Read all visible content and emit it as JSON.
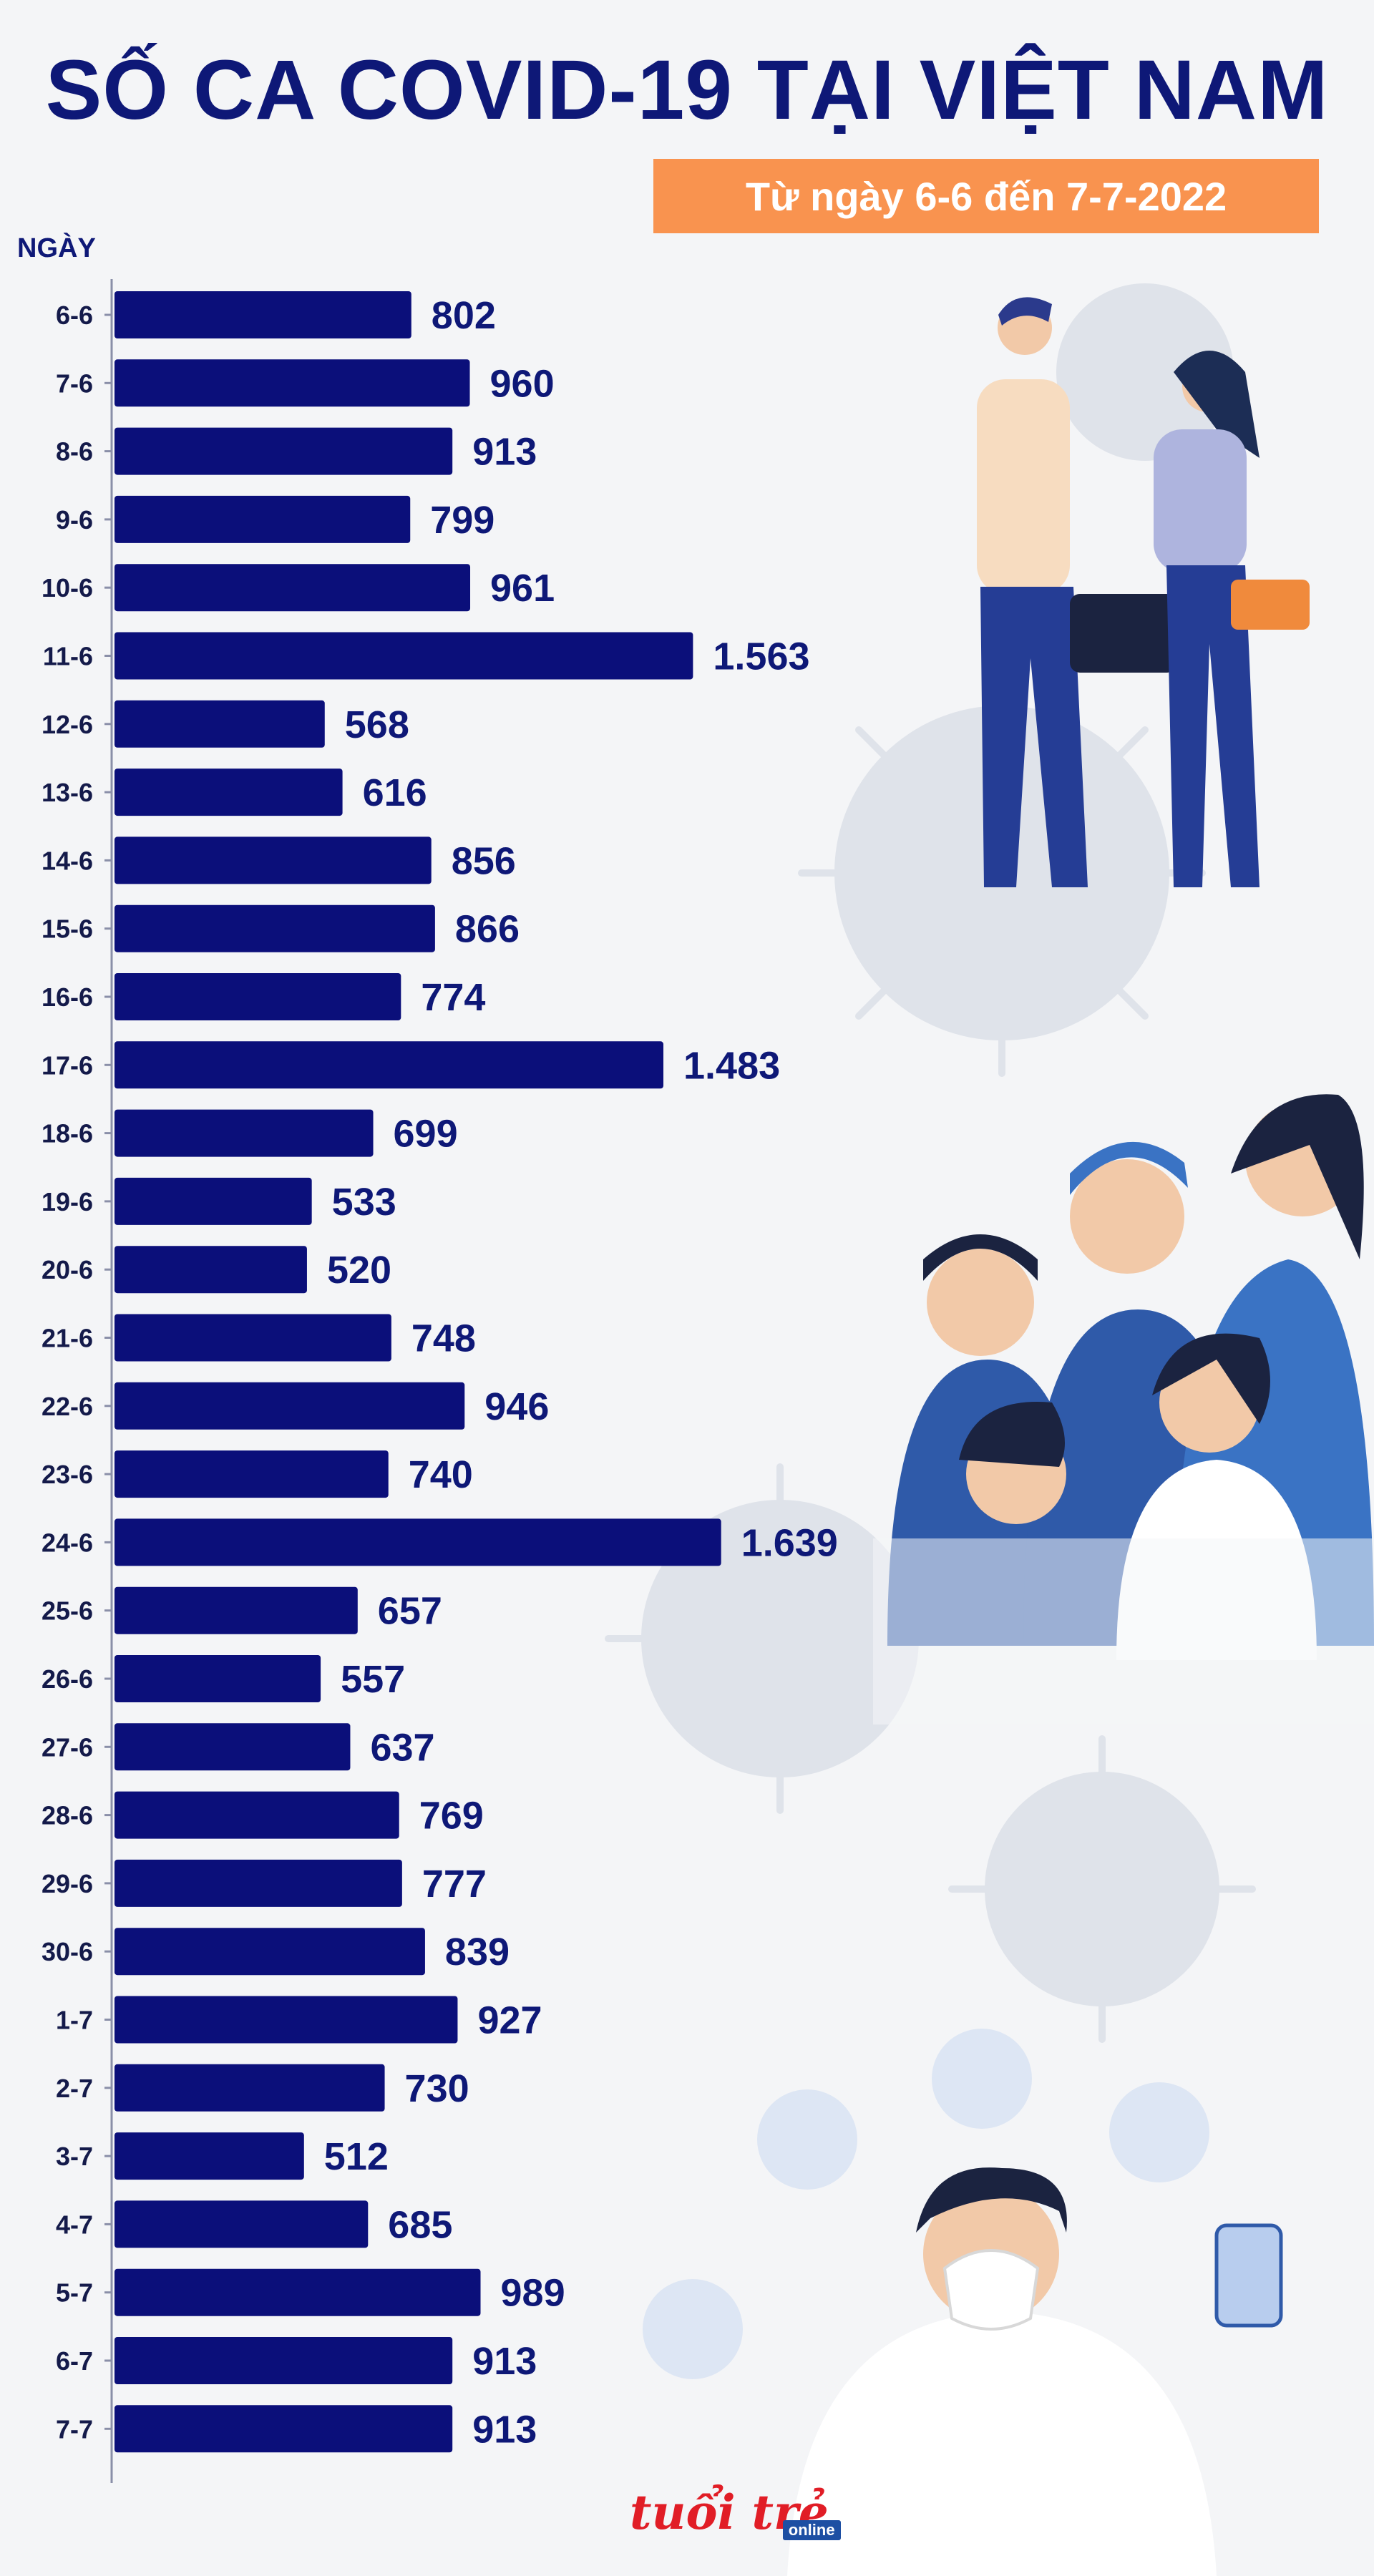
{
  "header": {
    "title": "SỐ CA COVID-19 TẠI VIỆT NAM",
    "date_range": "Từ ngày 6-6 đến 7-7-2022",
    "axis_label": "NGÀY"
  },
  "logo": {
    "main": "tuổi trẻ",
    "sub": "online"
  },
  "colors": {
    "bar": "#0b0f7a",
    "title": "#0e1877",
    "accent": "#f9934f",
    "virus": "#d9dee7"
  },
  "chart_data": {
    "type": "bar",
    "orientation": "horizontal",
    "categories": [
      "6-6",
      "7-6",
      "8-6",
      "9-6",
      "10-6",
      "11-6",
      "12-6",
      "13-6",
      "14-6",
      "15-6",
      "16-6",
      "17-6",
      "18-6",
      "19-6",
      "20-6",
      "21-6",
      "22-6",
      "23-6",
      "24-6",
      "25-6",
      "26-6",
      "27-6",
      "28-6",
      "29-6",
      "30-6",
      "1-7",
      "2-7",
      "3-7",
      "4-7",
      "5-7",
      "6-7",
      "7-7"
    ],
    "values": [
      802,
      960,
      913,
      799,
      961,
      1563,
      568,
      616,
      856,
      866,
      774,
      1483,
      699,
      533,
      520,
      748,
      946,
      740,
      1639,
      657,
      557,
      637,
      769,
      777,
      839,
      927,
      730,
      512,
      685,
      989,
      913,
      913
    ],
    "value_labels": [
      "802",
      "960",
      "913",
      "799",
      "961",
      "1.563",
      "568",
      "616",
      "856",
      "866",
      "774",
      "1.483",
      "699",
      "533",
      "520",
      "748",
      "946",
      "740",
      "1.639",
      "657",
      "557",
      "637",
      "769",
      "777",
      "839",
      "927",
      "730",
      "512",
      "685",
      "989",
      "913",
      "913"
    ],
    "title": "SỐ CA COVID-19 TẠI VIỆT NAM",
    "xlabel": "",
    "ylabel": "NGÀY",
    "grid": false
  }
}
